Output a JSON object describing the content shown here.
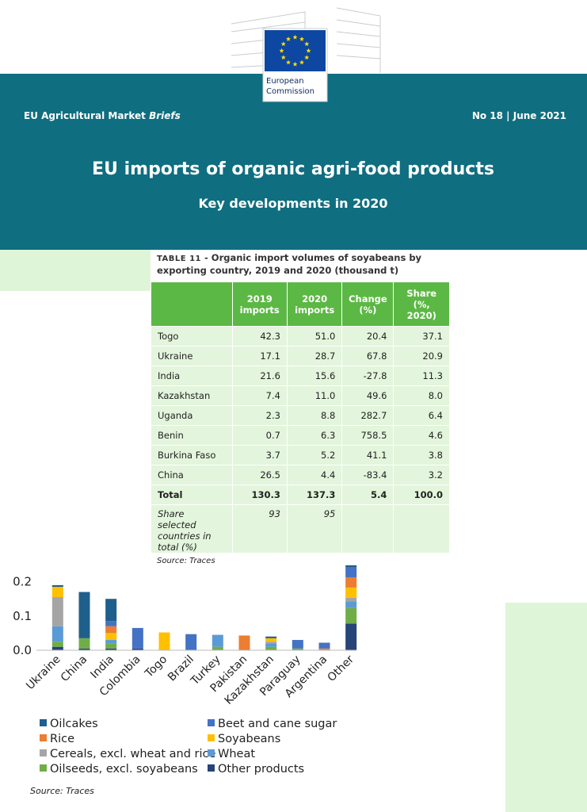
{
  "header": {
    "logo": [
      "European",
      "Commission"
    ],
    "series": "EU Agricultural Market",
    "series_emphasis": "Briefs",
    "issue": "No 18 | June 2021",
    "title": "EU imports of organic agri-food products",
    "subtitle": "Key developments in 2020"
  },
  "table": {
    "label": "TABLE 11",
    "caption": "- Organic import volumes of soyabeans by exporting country, 2019 and 2020 (thousand t)",
    "columns": [
      "2019 imports",
      "2020 imports",
      "Change (%)",
      "Share (%, 2020)"
    ],
    "rows": [
      [
        "Togo",
        "42.3",
        "51.0",
        "20.4",
        "37.1"
      ],
      [
        "Ukraine",
        "17.1",
        "28.7",
        "67.8",
        "20.9"
      ],
      [
        "India",
        "21.6",
        "15.6",
        "-27.8",
        "11.3"
      ],
      [
        "Kazakhstan",
        "7.4",
        "11.0",
        "49.6",
        "8.0"
      ],
      [
        "Uganda",
        "2.3",
        "8.8",
        "282.7",
        "6.4"
      ],
      [
        "Benin",
        "0.7",
        "6.3",
        "758.5",
        "4.6"
      ],
      [
        "Burkina Faso",
        "3.7",
        "5.2",
        "41.1",
        "3.8"
      ],
      [
        "China",
        "26.5",
        "4.4",
        "-83.4",
        "3.2"
      ]
    ],
    "total": [
      "Total",
      "130.3",
      "137.3",
      "5.4",
      "100.0"
    ],
    "share_row": [
      "Share selected countries in total (%)",
      "93",
      "95"
    ],
    "source": "Source: Traces"
  },
  "chart_data": {
    "type": "stacked-bar",
    "source": "Source: Traces",
    "categories": [
      "Ukraine",
      "China",
      "India",
      "Colombia",
      "Togo",
      "Brazil",
      "Turkey",
      "Pakistan",
      "Kazakhstan",
      "Paraguay",
      "Argentina",
      "Other"
    ],
    "ylim": [
      0,
      0.25
    ],
    "yticks": [
      {
        "value": 0,
        "label": "0.0"
      },
      0.1,
      0.2
    ],
    "grid": false,
    "series": [
      {
        "name": "Oilcakes",
        "color": "#1f5f8b",
        "values": [
          0.005,
          0.135,
          0.065,
          0,
          0,
          0,
          0,
          0,
          0.005,
          0,
          0,
          0.005
        ]
      },
      {
        "name": "Beet and cane sugar",
        "color": "#4472c4",
        "values": [
          0,
          0,
          0.015,
          0.06,
          0,
          0.047,
          0,
          0,
          0,
          0.025,
          0.017,
          0.03
        ]
      },
      {
        "name": "Rice",
        "color": "#ed7d31",
        "values": [
          0,
          0,
          0.02,
          0,
          0,
          0,
          0,
          0.043,
          0,
          0,
          0.005,
          0.03
        ]
      },
      {
        "name": "Soyabeans",
        "color": "#ffc000",
        "values": [
          0.03,
          0,
          0.02,
          0,
          0.052,
          0,
          0,
          0,
          0.01,
          0,
          0,
          0.03
        ]
      },
      {
        "name": "Cereals, excl. wheat and rice",
        "color": "#a5a5a5",
        "values": [
          0.085,
          0,
          0,
          0,
          0,
          0,
          0,
          0,
          0.005,
          0,
          0,
          0.01
        ]
      },
      {
        "name": "Wheat",
        "color": "#5b9bd5",
        "values": [
          0.045,
          0,
          0.01,
          0,
          0,
          0,
          0.035,
          0,
          0.01,
          0,
          0,
          0.02
        ]
      },
      {
        "name": "Oilseeds, excl. soyabeans",
        "color": "#70ad47",
        "values": [
          0.015,
          0.03,
          0.015,
          0,
          0,
          0,
          0.01,
          0,
          0.01,
          0.005,
          0,
          0.045
        ]
      },
      {
        "name": "Other products",
        "color": "#264478",
        "values": [
          0.01,
          0.005,
          0.005,
          0.005,
          0,
          0,
          0,
          0,
          0,
          0,
          0,
          0.078
        ]
      }
    ]
  }
}
